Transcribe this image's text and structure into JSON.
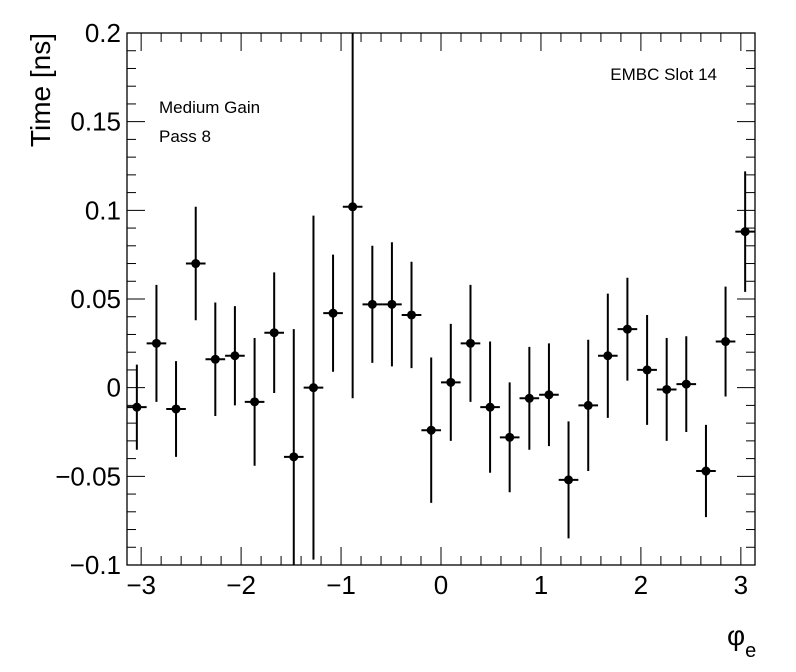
{
  "chart_data": {
    "type": "scatter",
    "title": "",
    "ylabel": "Time [ns]",
    "xlabel_main": "φ",
    "xlabel_sub": "e",
    "xlim": [
      -3.14159,
      3.14159
    ],
    "ylim": [
      -0.1,
      0.2
    ],
    "grid": false,
    "x_ticks": [
      -3,
      -2,
      -1,
      0,
      1,
      2,
      3
    ],
    "x_tick_labels": [
      "−3",
      "−2",
      "−1",
      "0",
      "1",
      "2",
      "3"
    ],
    "y_ticks": [
      -0.1,
      -0.05,
      0,
      0.05,
      0.1,
      0.15,
      0.2
    ],
    "y_tick_labels": [
      "−0.1",
      "−0.05",
      "0",
      "0.05",
      "0.1",
      "0.15",
      "0.2"
    ],
    "annotations": {
      "slot": "EMBC Slot 14",
      "gain": "Medium Gain",
      "pass": "Pass 8"
    },
    "bin_half_width": 0.0982,
    "points": [
      {
        "x": -3.043,
        "y": -0.011,
        "err": 0.024
      },
      {
        "x": -2.847,
        "y": 0.025,
        "err": 0.033
      },
      {
        "x": -2.651,
        "y": -0.012,
        "err": 0.027
      },
      {
        "x": -2.454,
        "y": 0.07,
        "err": 0.032
      },
      {
        "x": -2.258,
        "y": 0.016,
        "err": 0.032
      },
      {
        "x": -2.062,
        "y": 0.018,
        "err": 0.028
      },
      {
        "x": -1.865,
        "y": -0.008,
        "err": 0.036
      },
      {
        "x": -1.669,
        "y": 0.031,
        "err": 0.034
      },
      {
        "x": -1.473,
        "y": -0.039,
        "err": 0.072
      },
      {
        "x": -1.276,
        "y": 0.0,
        "err": 0.097
      },
      {
        "x": -1.08,
        "y": 0.042,
        "err": 0.033
      },
      {
        "x": -0.884,
        "y": 0.102,
        "err": 0.108
      },
      {
        "x": -0.687,
        "y": 0.047,
        "err": 0.033
      },
      {
        "x": -0.491,
        "y": 0.047,
        "err": 0.035
      },
      {
        "x": -0.295,
        "y": 0.041,
        "err": 0.03
      },
      {
        "x": -0.098,
        "y": -0.024,
        "err": 0.041
      },
      {
        "x": 0.098,
        "y": 0.003,
        "err": 0.033
      },
      {
        "x": 0.295,
        "y": 0.025,
        "err": 0.033
      },
      {
        "x": 0.491,
        "y": -0.011,
        "err": 0.037
      },
      {
        "x": 0.687,
        "y": -0.028,
        "err": 0.031
      },
      {
        "x": 0.884,
        "y": -0.006,
        "err": 0.029
      },
      {
        "x": 1.08,
        "y": -0.004,
        "err": 0.029
      },
      {
        "x": 1.276,
        "y": -0.052,
        "err": 0.033
      },
      {
        "x": 1.473,
        "y": -0.01,
        "err": 0.037
      },
      {
        "x": 1.669,
        "y": 0.018,
        "err": 0.035
      },
      {
        "x": 1.865,
        "y": 0.033,
        "err": 0.029
      },
      {
        "x": 2.062,
        "y": 0.01,
        "err": 0.031
      },
      {
        "x": 2.258,
        "y": -0.001,
        "err": 0.029
      },
      {
        "x": 2.454,
        "y": 0.002,
        "err": 0.027
      },
      {
        "x": 2.651,
        "y": -0.047,
        "err": 0.026
      },
      {
        "x": 2.847,
        "y": 0.026,
        "err": 0.031
      },
      {
        "x": 3.043,
        "y": 0.088,
        "err": 0.034
      }
    ]
  }
}
